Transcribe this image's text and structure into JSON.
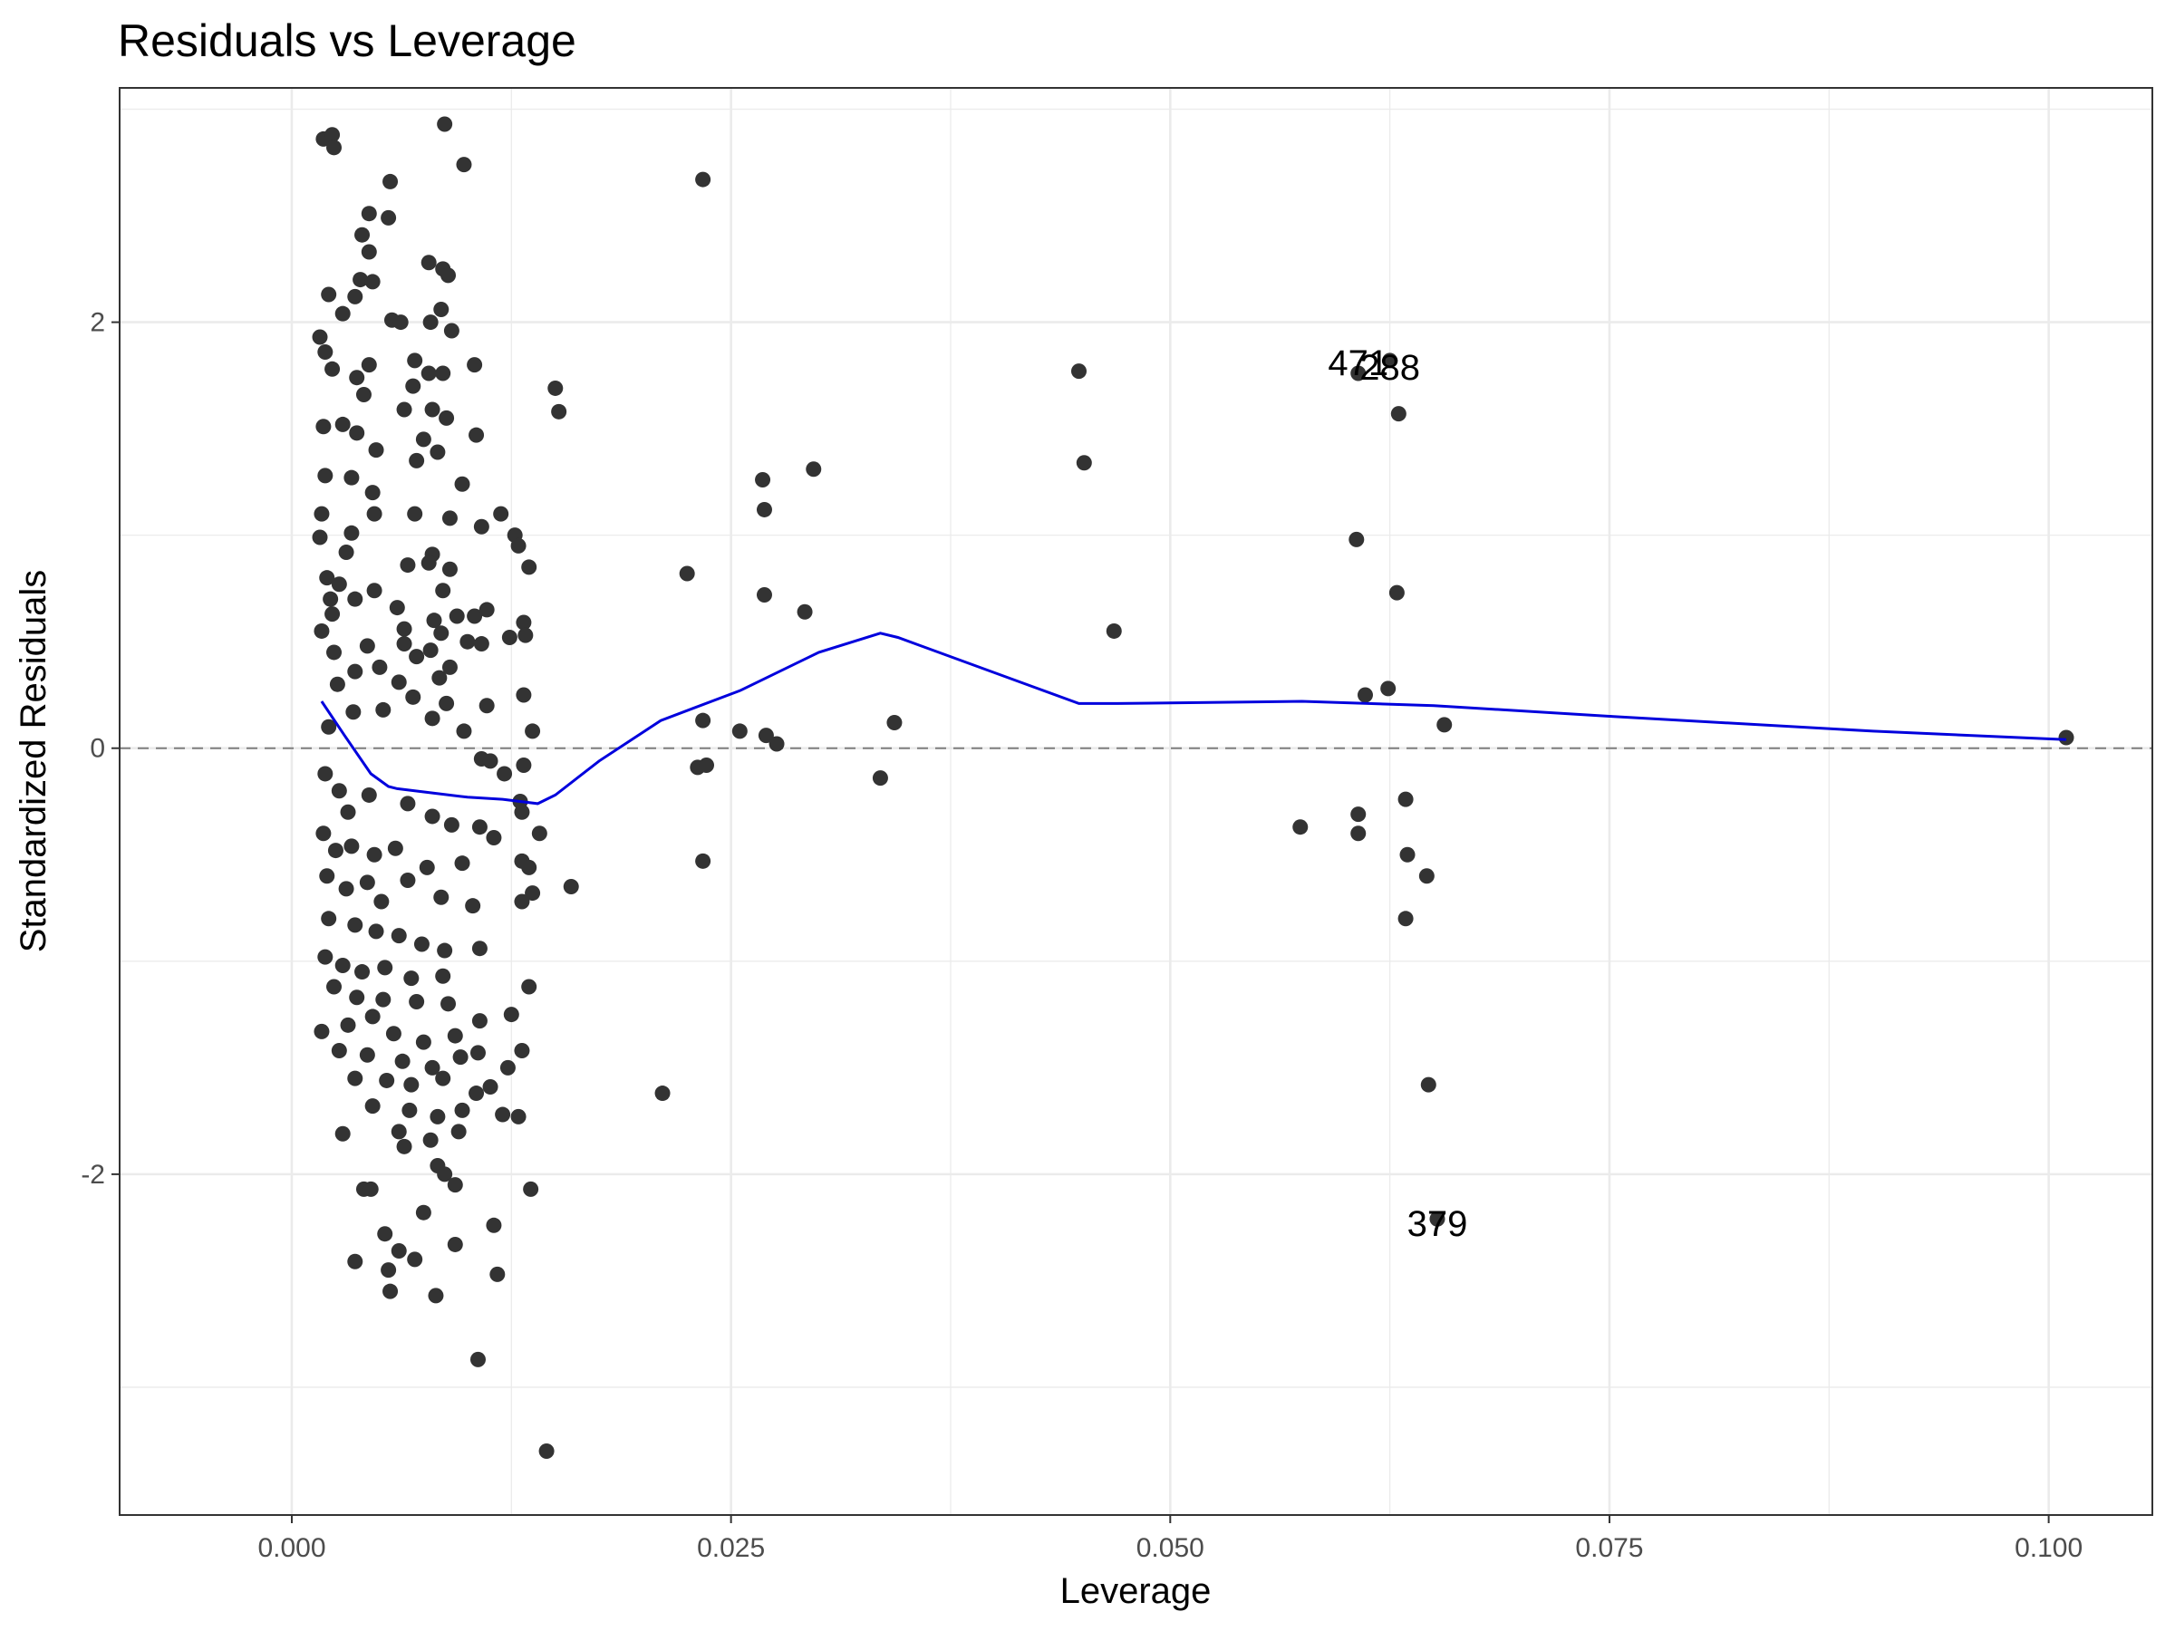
{
  "chart_data": {
    "type": "scatter",
    "title": "Residuals vs Leverage",
    "xlabel": "Leverage",
    "ylabel": "Standardized Residuals",
    "xlim": [
      -0.0098,
      0.1059
    ],
    "ylim": [
      -3.6,
      3.1
    ],
    "x_ticks": [
      0.0,
      0.025,
      0.05,
      0.075,
      0.1
    ],
    "x_tick_labels": [
      "0.000",
      "0.025",
      "0.050",
      "0.075",
      "0.100"
    ],
    "y_ticks": [
      -2,
      0,
      2
    ],
    "y_tick_labels": [
      "-2",
      "0",
      "2"
    ],
    "grid": true,
    "reference_line": {
      "y": 0,
      "style": "dashed",
      "color": "#7f7f7f"
    },
    "point_color": "#333333",
    "line_color": "#0000dd",
    "points": [
      [
        0.0018,
        2.86
      ],
      [
        0.0023,
        2.88
      ],
      [
        0.0024,
        2.82
      ],
      [
        0.0087,
        2.93
      ],
      [
        0.0098,
        2.74
      ],
      [
        0.0056,
        2.66
      ],
      [
        0.0044,
        2.51
      ],
      [
        0.0055,
        2.49
      ],
      [
        0.004,
        2.41
      ],
      [
        0.0044,
        2.33
      ],
      [
        0.0078,
        2.28
      ],
      [
        0.0086,
        2.25
      ],
      [
        0.0089,
        2.22
      ],
      [
        0.0039,
        2.2
      ],
      [
        0.0046,
        2.19
      ],
      [
        0.0021,
        2.13
      ],
      [
        0.0036,
        2.12
      ],
      [
        0.0085,
        2.06
      ],
      [
        0.0029,
        2.04
      ],
      [
        0.0057,
        2.01
      ],
      [
        0.0062,
        2.0
      ],
      [
        0.0079,
        2.0
      ],
      [
        0.0091,
        1.96
      ],
      [
        0.0016,
        1.93
      ],
      [
        0.0019,
        1.86
      ],
      [
        0.007,
        1.82
      ],
      [
        0.0104,
        1.8
      ],
      [
        0.0023,
        1.78
      ],
      [
        0.0044,
        1.8
      ],
      [
        0.0078,
        1.76
      ],
      [
        0.0086,
        1.76
      ],
      [
        0.0037,
        1.74
      ],
      [
        0.015,
        1.69
      ],
      [
        0.0069,
        1.7
      ],
      [
        0.0041,
        1.66
      ],
      [
        0.0152,
        1.58
      ],
      [
        0.0064,
        1.59
      ],
      [
        0.008,
        1.59
      ],
      [
        0.0088,
        1.55
      ],
      [
        0.0018,
        1.51
      ],
      [
        0.0029,
        1.52
      ],
      [
        0.0037,
        1.48
      ],
      [
        0.0105,
        1.47
      ],
      [
        0.0075,
        1.45
      ],
      [
        0.0048,
        1.4
      ],
      [
        0.0083,
        1.39
      ],
      [
        0.0071,
        1.35
      ],
      [
        0.0019,
        1.28
      ],
      [
        0.0034,
        1.27
      ],
      [
        0.0097,
        1.24
      ],
      [
        0.0046,
        1.2
      ],
      [
        0.0017,
        1.1
      ],
      [
        0.009,
        1.08
      ],
      [
        0.0119,
        1.1
      ],
      [
        0.007,
        1.1
      ],
      [
        0.0047,
        1.1
      ],
      [
        0.0108,
        1.04
      ],
      [
        0.0127,
        1.0
      ],
      [
        0.0016,
        0.99
      ],
      [
        0.0034,
        1.01
      ],
      [
        0.0129,
        0.95
      ],
      [
        0.0031,
        0.92
      ],
      [
        0.008,
        0.91
      ],
      [
        0.0078,
        0.87
      ],
      [
        0.0135,
        0.85
      ],
      [
        0.0066,
        0.86
      ],
      [
        0.009,
        0.84
      ],
      [
        0.002,
        0.8
      ],
      [
        0.0027,
        0.77
      ],
      [
        0.0047,
        0.74
      ],
      [
        0.0086,
        0.74
      ],
      [
        0.0022,
        0.7
      ],
      [
        0.0036,
        0.7
      ],
      [
        0.006,
        0.66
      ],
      [
        0.0094,
        0.62
      ],
      [
        0.0104,
        0.62
      ],
      [
        0.0111,
        0.65
      ],
      [
        0.0023,
        0.63
      ],
      [
        0.0081,
        0.6
      ],
      [
        0.0132,
        0.59
      ],
      [
        0.0064,
        0.56
      ],
      [
        0.0017,
        0.55
      ],
      [
        0.0085,
        0.54
      ],
      [
        0.0124,
        0.52
      ],
      [
        0.0133,
        0.53
      ],
      [
        0.01,
        0.5
      ],
      [
        0.0108,
        0.49
      ],
      [
        0.0043,
        0.48
      ],
      [
        0.0064,
        0.49
      ],
      [
        0.0079,
        0.46
      ],
      [
        0.0024,
        0.45
      ],
      [
        0.0071,
        0.43
      ],
      [
        0.009,
        0.38
      ],
      [
        0.005,
        0.38
      ],
      [
        0.0036,
        0.36
      ],
      [
        0.0084,
        0.33
      ],
      [
        0.0061,
        0.31
      ],
      [
        0.0026,
        0.3
      ],
      [
        0.0132,
        0.25
      ],
      [
        0.0069,
        0.24
      ],
      [
        0.0111,
        0.2
      ],
      [
        0.0088,
        0.21
      ],
      [
        0.0052,
        0.18
      ],
      [
        0.0035,
        0.17
      ],
      [
        0.008,
        0.14
      ],
      [
        0.0137,
        0.08
      ],
      [
        0.0021,
        0.1
      ],
      [
        0.0098,
        0.08
      ],
      [
        0.0108,
        -0.05
      ],
      [
        0.0113,
        -0.06
      ],
      [
        0.0132,
        -0.08
      ],
      [
        0.0121,
        -0.12
      ],
      [
        0.013,
        -0.25
      ],
      [
        0.0131,
        -0.3
      ],
      [
        0.0019,
        -0.12
      ],
      [
        0.0027,
        -0.2
      ],
      [
        0.0032,
        -0.3
      ],
      [
        0.0044,
        -0.22
      ],
      [
        0.0066,
        -0.26
      ],
      [
        0.008,
        -0.32
      ],
      [
        0.0091,
        -0.36
      ],
      [
        0.0107,
        -0.37
      ],
      [
        0.0115,
        -0.42
      ],
      [
        0.0141,
        -0.4
      ],
      [
        0.0018,
        -0.4
      ],
      [
        0.0025,
        -0.48
      ],
      [
        0.0034,
        -0.46
      ],
      [
        0.0047,
        -0.5
      ],
      [
        0.0059,
        -0.47
      ],
      [
        0.0077,
        -0.56
      ],
      [
        0.0097,
        -0.54
      ],
      [
        0.0131,
        -0.53
      ],
      [
        0.0135,
        -0.56
      ],
      [
        0.0159,
        -0.65
      ],
      [
        0.0137,
        -0.68
      ],
      [
        0.0131,
        -0.72
      ],
      [
        0.002,
        -0.6
      ],
      [
        0.0031,
        -0.66
      ],
      [
        0.0043,
        -0.63
      ],
      [
        0.0051,
        -0.72
      ],
      [
        0.0066,
        -0.62
      ],
      [
        0.0085,
        -0.7
      ],
      [
        0.0103,
        -0.74
      ],
      [
        0.0021,
        -0.8
      ],
      [
        0.0036,
        -0.83
      ],
      [
        0.0048,
        -0.86
      ],
      [
        0.0061,
        -0.88
      ],
      [
        0.0074,
        -0.92
      ],
      [
        0.0087,
        -0.95
      ],
      [
        0.0107,
        -0.94
      ],
      [
        0.0019,
        -0.98
      ],
      [
        0.0029,
        -1.02
      ],
      [
        0.004,
        -1.05
      ],
      [
        0.0053,
        -1.03
      ],
      [
        0.0068,
        -1.08
      ],
      [
        0.0086,
        -1.07
      ],
      [
        0.0024,
        -1.12
      ],
      [
        0.0037,
        -1.17
      ],
      [
        0.0052,
        -1.18
      ],
      [
        0.0071,
        -1.19
      ],
      [
        0.0089,
        -1.2
      ],
      [
        0.0135,
        -1.12
      ],
      [
        0.0125,
        -1.25
      ],
      [
        0.0017,
        -1.33
      ],
      [
        0.0032,
        -1.3
      ],
      [
        0.0046,
        -1.26
      ],
      [
        0.0058,
        -1.34
      ],
      [
        0.0075,
        -1.38
      ],
      [
        0.0093,
        -1.35
      ],
      [
        0.0107,
        -1.28
      ],
      [
        0.0027,
        -1.42
      ],
      [
        0.0043,
        -1.44
      ],
      [
        0.0063,
        -1.47
      ],
      [
        0.008,
        -1.5
      ],
      [
        0.0096,
        -1.45
      ],
      [
        0.0106,
        -1.43
      ],
      [
        0.0131,
        -1.42
      ],
      [
        0.0123,
        -1.5
      ],
      [
        0.0036,
        -1.55
      ],
      [
        0.0054,
        -1.56
      ],
      [
        0.0068,
        -1.58
      ],
      [
        0.0086,
        -1.55
      ],
      [
        0.0113,
        -1.59
      ],
      [
        0.0105,
        -1.62
      ],
      [
        0.0046,
        -1.68
      ],
      [
        0.0067,
        -1.7
      ],
      [
        0.0083,
        -1.73
      ],
      [
        0.0097,
        -1.7
      ],
      [
        0.012,
        -1.72
      ],
      [
        0.0129,
        -1.73
      ],
      [
        0.0029,
        -1.81
      ],
      [
        0.0061,
        -1.8
      ],
      [
        0.0079,
        -1.84
      ],
      [
        0.0095,
        -1.8
      ],
      [
        0.0064,
        -1.87
      ],
      [
        0.0083,
        -1.96
      ],
      [
        0.0087,
        -2.0
      ],
      [
        0.0093,
        -2.05
      ],
      [
        0.0041,
        -2.07
      ],
      [
        0.0045,
        -2.07
      ],
      [
        0.0136,
        -2.07
      ],
      [
        0.0075,
        -2.18
      ],
      [
        0.0115,
        -2.24
      ],
      [
        0.0053,
        -2.28
      ],
      [
        0.0061,
        -2.36
      ],
      [
        0.0093,
        -2.33
      ],
      [
        0.0036,
        -2.41
      ],
      [
        0.007,
        -2.4
      ],
      [
        0.0055,
        -2.45
      ],
      [
        0.0117,
        -2.47
      ],
      [
        0.0056,
        -2.55
      ],
      [
        0.0082,
        -2.57
      ],
      [
        0.0106,
        -2.87
      ],
      [
        0.0145,
        -3.3
      ],
      [
        0.0234,
        2.67
      ],
      [
        0.0225,
        0.82
      ],
      [
        0.0211,
        -1.62
      ],
      [
        0.0231,
        -0.09
      ],
      [
        0.0236,
        -0.08
      ],
      [
        0.0234,
        0.13
      ],
      [
        0.0234,
        -0.53
      ],
      [
        0.0268,
        1.26
      ],
      [
        0.0269,
        1.12
      ],
      [
        0.0269,
        0.72
      ],
      [
        0.0255,
        0.08
      ],
      [
        0.027,
        0.06
      ],
      [
        0.0276,
        0.02
      ],
      [
        0.0297,
        1.31
      ],
      [
        0.0292,
        0.64
      ],
      [
        0.0343,
        0.12
      ],
      [
        0.0335,
        -0.14
      ],
      [
        0.0448,
        1.77
      ],
      [
        0.0451,
        1.34
      ],
      [
        0.0468,
        0.55
      ],
      [
        0.0574,
        -0.37
      ],
      [
        0.0606,
        0.98
      ],
      [
        0.0607,
        -0.31
      ],
      [
        0.0607,
        -0.4
      ],
      [
        0.0611,
        0.25
      ],
      [
        0.0624,
        0.28
      ],
      [
        0.063,
        1.57
      ],
      [
        0.0629,
        0.73
      ],
      [
        0.0634,
        -0.24
      ],
      [
        0.0635,
        -0.5
      ],
      [
        0.0634,
        -0.8
      ],
      [
        0.0646,
        -0.6
      ],
      [
        0.0647,
        -1.58
      ],
      [
        0.0656,
        0.11
      ],
      [
        0.101,
        0.05
      ],
      [
        0.0607,
        1.76
      ],
      [
        0.0625,
        1.82
      ],
      [
        0.0652,
        -2.21
      ]
    ],
    "smooth_line": [
      [
        0.0017,
        0.22
      ],
      [
        0.003,
        0.06
      ],
      [
        0.0045,
        -0.12
      ],
      [
        0.0055,
        -0.18
      ],
      [
        0.006,
        -0.19
      ],
      [
        0.008,
        -0.21
      ],
      [
        0.01,
        -0.23
      ],
      [
        0.012,
        -0.24
      ],
      [
        0.014,
        -0.26
      ],
      [
        0.015,
        -0.22
      ],
      [
        0.0175,
        -0.06
      ],
      [
        0.021,
        0.13
      ],
      [
        0.0255,
        0.27
      ],
      [
        0.03,
        0.45
      ],
      [
        0.0335,
        0.54
      ],
      [
        0.0345,
        0.52
      ],
      [
        0.0448,
        0.21
      ],
      [
        0.047,
        0.21
      ],
      [
        0.0575,
        0.22
      ],
      [
        0.065,
        0.2
      ],
      [
        0.075,
        0.15
      ],
      [
        0.09,
        0.08
      ],
      [
        0.101,
        0.04
      ]
    ],
    "annotations": [
      {
        "text": "471",
        "x": 0.0607,
        "y": 1.81
      },
      {
        "text": "288",
        "x": 0.0625,
        "y": 1.79
      },
      {
        "text": "379",
        "x": 0.0652,
        "y": -2.23
      }
    ]
  }
}
